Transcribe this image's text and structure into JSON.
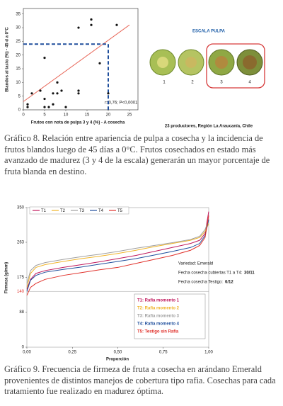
{
  "chart_data": [
    {
      "type": "scatter",
      "x_label": "Frutos con nota de pulpa 3 y 4 (%) - A cosecha",
      "y_label": "Blandos al tacto (%) - 45 d a 0°C",
      "x": [
        1,
        1,
        2,
        4,
        5,
        5,
        5,
        6,
        7,
        7,
        8,
        8,
        9,
        10,
        13,
        13,
        13,
        16,
        16,
        18,
        20,
        22
      ],
      "y": [
        1,
        2,
        6,
        7,
        19,
        4,
        1,
        1,
        6,
        2,
        6,
        10,
        7,
        1,
        7,
        6,
        30,
        33,
        31,
        17,
        6,
        31
      ],
      "color": "#111111",
      "xlim": [
        0,
        27
      ],
      "ylim": [
        0,
        37
      ],
      "xticks": [
        0,
        5,
        10,
        15,
        20,
        25
      ],
      "yticks": [
        0,
        5,
        10,
        15,
        20,
        25,
        30,
        35
      ],
      "trend_line": {
        "x": [
          0,
          25
        ],
        "y": [
          3,
          31
        ],
        "color": "#e8685a"
      },
      "threshold": {
        "x": 20,
        "y": 24,
        "color": "#1f4e9c"
      },
      "annotation": "r=0,76; P<0,0001"
    },
    {
      "type": "line",
      "x_label": "Proporción",
      "y_label": "Firmeza (g/mm)",
      "x": [
        0,
        0.02,
        0.05,
        0.1,
        0.2,
        0.3,
        0.4,
        0.5,
        0.6,
        0.7,
        0.8,
        0.9,
        0.95,
        0.98,
        1
      ],
      "series": [
        {
          "name": "T1",
          "color": "#c0185c",
          "values": [
            145,
            170,
            185,
            192,
            200,
            207,
            214,
            222,
            230,
            240,
            250,
            260,
            268,
            285,
            340
          ]
        },
        {
          "name": "T2",
          "color": "#f0b429",
          "values": [
            150,
            185,
            200,
            207,
            215,
            222,
            228,
            235,
            243,
            252,
            260,
            268,
            275,
            290,
            310
          ]
        },
        {
          "name": "T3",
          "color": "#a0a0a0",
          "values": [
            160,
            192,
            205,
            212,
            220,
            227,
            233,
            240,
            248,
            255,
            262,
            270,
            278,
            295,
            320
          ]
        },
        {
          "name": "T4",
          "color": "#1f4e9c",
          "values": [
            140,
            168,
            180,
            188,
            195,
            201,
            208,
            215,
            222,
            231,
            240,
            250,
            260,
            280,
            320
          ]
        },
        {
          "name": "T5",
          "color": "#e0302a",
          "values": [
            130,
            150,
            160,
            170,
            180,
            187,
            194,
            200,
            210,
            220,
            230,
            243,
            255,
            275,
            330
          ]
        }
      ],
      "xlim": [
        0,
        1
      ],
      "ylim": [
        0,
        350
      ],
      "xticks": [
        {
          "value": 0,
          "label": "0,00"
        },
        {
          "value": 0.25,
          "label": "0,25"
        },
        {
          "value": 0.5,
          "label": "0,50"
        },
        {
          "value": 0.75,
          "label": "0,75"
        },
        {
          "value": 1,
          "label": "1,00"
        }
      ],
      "yticks": [
        0,
        88,
        175,
        263,
        350
      ],
      "threshold_y": 140,
      "info": {
        "variety": "Variedad: Emerald",
        "harvest_covered": "Fecha cosecha cubiertas T1 a T4:",
        "harvest_covered_date": "30/11",
        "harvest_control": "Fecha cosecha Testigo:",
        "harvest_control_date": "6/12"
      },
      "treatments": [
        "T1: Rafia momento 1",
        "T2: Rafia momento 2",
        "T3: Rafia momento 3",
        "T4: Rafia momento 4",
        "T5: Testigo sin Rafia"
      ]
    }
  ],
  "scale": {
    "title": "ESCALA PULPA",
    "levels": [
      "1",
      "2",
      "3",
      "4"
    ],
    "source": "23 productores, Región La Araucanía, Chile"
  },
  "captions": [
    "Gráfico 8. Relación entre apariencia de pulpa a cosecha y la incidencia de frutos blandos luego de 45 días a 0°C. Frutos cosechados en estado más avanzado de madurez (3 y 4 de la escala) generarán un mayor porcentaje de fruta blanda en destino.",
    "Gráfico 9. Frecuencia de firmeza de fruta a cosecha en arándano Emerald provenientes de distintos manejos de cobertura tipo rafia. Cosechas para cada tratamiento fue realizado en madurez óptima."
  ]
}
